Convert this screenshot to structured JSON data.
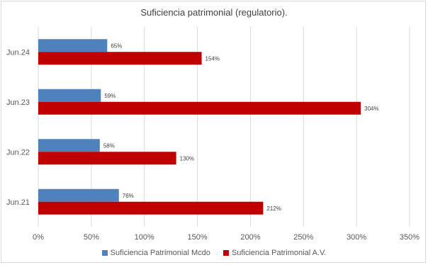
{
  "chart_data": {
    "type": "bar",
    "orientation": "horizontal",
    "title": "Suficiencia patrimonial (regulatorio).",
    "categories": [
      "Jun.24",
      "Jun.23",
      "Jun.22",
      "Jun.21"
    ],
    "series": [
      {
        "name": "Suficiencia Patrimonial Mcdo",
        "color": "#4f81bd",
        "values": [
          65,
          59,
          58,
          76
        ],
        "labels": [
          "65%",
          "59%",
          "58%",
          "76%"
        ]
      },
      {
        "name": "Suficiencia Patrimonial A.V.",
        "color": "#c00000",
        "values": [
          154,
          304,
          130,
          212
        ],
        "labels": [
          "154%",
          "304%",
          "130%",
          "212%"
        ]
      }
    ],
    "xlim": [
      0,
      350
    ],
    "x_ticks": [
      "0%",
      "50%",
      "100%",
      "150%",
      "200%",
      "250%",
      "300%",
      "350%"
    ],
    "grid": true,
    "legend_position": "bottom"
  }
}
